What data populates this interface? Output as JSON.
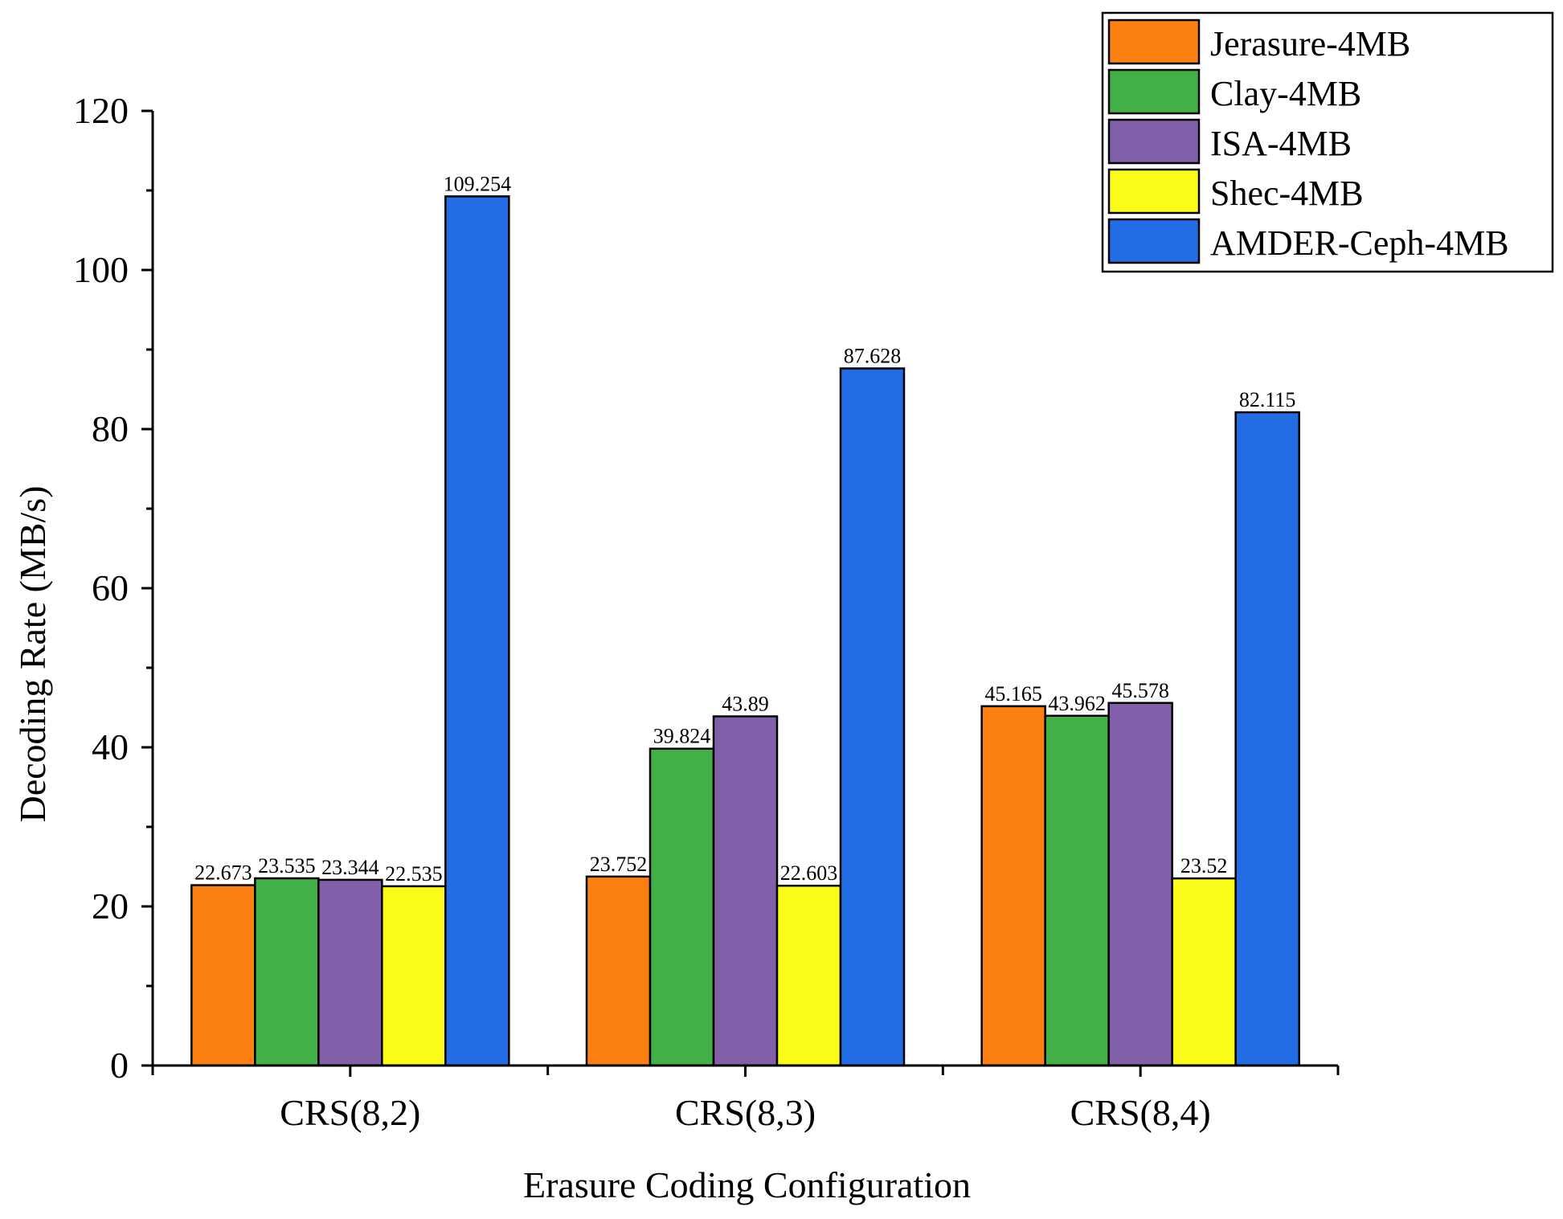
{
  "chart_data": {
    "type": "bar",
    "title": "",
    "xlabel": "Erasure Coding Configuration",
    "ylabel": "Decoding Rate (MB/s)",
    "ylim": [
      0,
      120
    ],
    "yticks": [
      0,
      20,
      40,
      60,
      80,
      100,
      120
    ],
    "yticks_text": [
      "0",
      "20",
      "40",
      "60",
      "80",
      "100",
      "120"
    ],
    "categories": [
      "CRS(8,2)",
      "CRS(8,3)",
      "CRS(8,4)"
    ],
    "legend_position": "top-right",
    "series": [
      {
        "name": "Jerasure-4MB",
        "color": "#fc7f12",
        "values": [
          22.673,
          23.752,
          45.165
        ],
        "labels": [
          "22.673",
          "23.752",
          "45.165"
        ]
      },
      {
        "name": "Clay-4MB",
        "color": "#43b047",
        "values": [
          23.535,
          39.824,
          43.962
        ],
        "labels": [
          "23.535",
          "39.824",
          "43.962"
        ]
      },
      {
        "name": "ISA-4MB",
        "color": "#8160a9",
        "values": [
          23.344,
          43.89,
          45.578
        ],
        "labels": [
          "23.344",
          "43.89",
          "45.578"
        ]
      },
      {
        "name": "Shec-4MB",
        "color": "#fbfb1a",
        "values": [
          22.535,
          22.603,
          23.52
        ],
        "labels": [
          "22.535",
          "22.603",
          "23.52"
        ]
      },
      {
        "name": "AMDER-Ceph-4MB",
        "color": "#226de5",
        "values": [
          109.254,
          87.628,
          82.115
        ],
        "labels": [
          "109.254",
          "87.628",
          "82.115"
        ]
      }
    ]
  }
}
